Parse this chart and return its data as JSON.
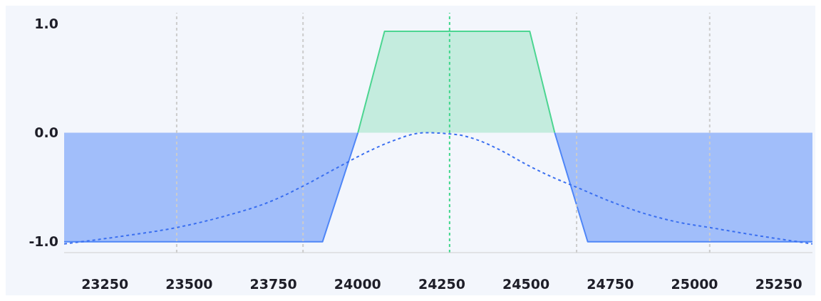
{
  "chart_data": {
    "type": "area",
    "xlim": [
      23129,
      25350
    ],
    "xticks": [
      23250,
      23500,
      23750,
      24000,
      24250,
      24500,
      24750,
      25000,
      25250
    ],
    "ylim": [
      -1.1,
      1.1
    ],
    "yticks": [
      {
        "value": -1,
        "label": "-1.0"
      },
      {
        "value": 0,
        "label": "0.0"
      },
      {
        "value": 1,
        "label": "1.0"
      }
    ],
    "series": [
      {
        "color": "#4cd591",
        "x": [
          24001,
          24080,
          24511,
          24585
        ],
        "values": [
          0,
          0.93,
          0.93,
          0
        ]
      },
      {
        "type": "area",
        "color": "#4f86f7",
        "x": [
          23129,
          23896,
          24001,
          24300,
          24585,
          24683,
          25350
        ],
        "values": [
          -1.0,
          -1.0,
          0,
          null,
          0,
          -1.0,
          -1.0
        ]
      },
      {
        "type": "line",
        "color": "#3a6ff0",
        "line_style": "dashed",
        "x": [
          23129,
          23300,
          23463,
          23600,
          23750,
          23838,
          23940,
          24040,
          24100,
          24200,
          24300,
          24350,
          24430,
          24500,
          24580,
          24650,
          24750,
          24850,
          24950,
          25045,
          25200,
          25350
        ],
        "values": [
          -1.02,
          -0.95,
          -0.87,
          -0.77,
          -0.62,
          -0.49,
          -0.32,
          -0.16,
          -0.08,
          0.0,
          -0.02,
          -0.06,
          -0.17,
          -0.29,
          -0.41,
          -0.5,
          -0.63,
          -0.74,
          -0.82,
          -0.87,
          -0.95,
          -1.02
        ]
      }
    ],
    "ref_lines": [
      {
        "axis": "x",
        "value": 23463,
        "color": "#cccccc",
        "line_style": "dashed"
      },
      {
        "axis": "x",
        "value": 23838,
        "color": "#cccccc",
        "line_style": "dashed"
      },
      {
        "axis": "x",
        "value": 24273,
        "color": "#3ed68a",
        "line_style": "dashed"
      },
      {
        "axis": "x",
        "value": 24650,
        "color": "#cccccc",
        "line_style": "dashed"
      },
      {
        "axis": "x",
        "value": 25045,
        "color": "#cccccc",
        "line_style": "dashed"
      }
    ]
  }
}
